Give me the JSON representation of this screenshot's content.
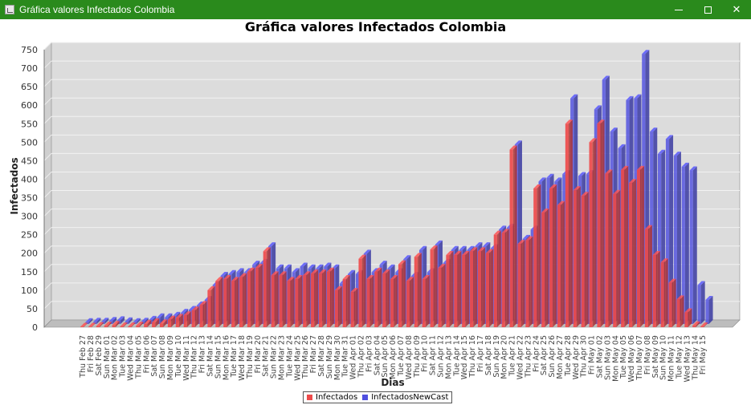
{
  "window": {
    "title": "Gráfica valores Infectados Colombia",
    "minimize_glyph": "—",
    "maximize_glyph": "☐",
    "close_glyph": "✕"
  },
  "colors": {
    "titlebar": "#2a8a1c",
    "plot_background": "#dcdcdc",
    "series_infectados": "#ee4b4b",
    "series_newcast": "#4f4fe0"
  },
  "chart_data": {
    "type": "bar",
    "title": "Gráfica valores Infectados Colombia",
    "xlabel": "Dias",
    "ylabel": "Infectados",
    "ylim": [
      0,
      750
    ],
    "yticks": [
      0,
      50,
      100,
      150,
      200,
      250,
      300,
      350,
      400,
      450,
      500,
      550,
      600,
      650,
      700,
      750
    ],
    "grid": true,
    "legend_position": "bottom-center",
    "categories": [
      "Thu Feb 27",
      "Fri Feb 28",
      "Sat Feb 29",
      "Sun Mar 01",
      "Mon Mar 02",
      "Tue Mar 03",
      "Wed Mar 04",
      "Thu Mar 05",
      "Fri Mar 06",
      "Sat Mar 07",
      "Sun Mar 08",
      "Mon Mar 09",
      "Tue Mar 10",
      "Wed Mar 11",
      "Thu Mar 12",
      "Fri Mar 13",
      "Sat Mar 14",
      "Sun Mar 15",
      "Mon Mar 16",
      "Tue Mar 17",
      "Wed Mar 18",
      "Thu Mar 19",
      "Fri Mar 20",
      "Sat Mar 21",
      "Sun Mar 22",
      "Mon Mar 23",
      "Tue Mar 24",
      "Wed Mar 25",
      "Thu Mar 26",
      "Fri Mar 27",
      "Sat Mar 28",
      "Sun Mar 29",
      "Mon Mar 30",
      "Tue Mar 31",
      "Wed Apr 01",
      "Thu Apr 02",
      "Fri Apr 03",
      "Sat Apr 04",
      "Sun Apr 05",
      "Mon Apr 06",
      "Tue Apr 07",
      "Wed Apr 08",
      "Thu Apr 09",
      "Fri Apr 10",
      "Sat Apr 11",
      "Sun Apr 12",
      "Mon Apr 13",
      "Tue Apr 14",
      "Wed Apr 15",
      "Thu Apr 16",
      "Fri Apr 17",
      "Sat Apr 18",
      "Sun Apr 19",
      "Mon Apr 20",
      "Tue Apr 21",
      "Wed Apr 22",
      "Thu Apr 23",
      "Fri Apr 24",
      "Sat Apr 25",
      "Sun Apr 26",
      "Mon Apr 27",
      "Tue Apr 28",
      "Wed Apr 29",
      "Thu Apr 30",
      "Fri May 01",
      "Sat May 02",
      "Sun May 03",
      "Mon May 04",
      "Tue May 05",
      "Wed May 06",
      "Thu May 07",
      "Fri May 08",
      "Sat May 09",
      "Sun May 10",
      "Mon May 11",
      "Tue May 12",
      "Wed May 13",
      "Thu May 14",
      "Fri May 15"
    ],
    "series": [
      {
        "name": "Infectados",
        "color": "#ee4b4b",
        "values": [
          1,
          1,
          3,
          4,
          6,
          2,
          2,
          4,
          9,
          13,
          10,
          20,
          25,
          32,
          45,
          60,
          100,
          125,
          130,
          125,
          135,
          150,
          160,
          205,
          140,
          140,
          125,
          130,
          140,
          145,
          145,
          150,
          100,
          130,
          95,
          185,
          130,
          150,
          145,
          130,
          170,
          125,
          190,
          130,
          210,
          160,
          195,
          195,
          195,
          205,
          205,
          200,
          250,
          255,
          480,
          225,
          235,
          375,
          310,
          375,
          330,
          550,
          370,
          355,
          500,
          550,
          415,
          360,
          425,
          390,
          425,
          265,
          195,
          175,
          120,
          75,
          40,
          5,
          2
        ]
      },
      {
        "name": "InfectadosNewCast",
        "color": "#4f4fe0",
        "values": [
          5,
          6,
          6,
          8,
          10,
          7,
          5,
          6,
          11,
          18,
          18,
          22,
          30,
          38,
          50,
          65,
          105,
          130,
          135,
          140,
          140,
          160,
          165,
          210,
          150,
          150,
          140,
          155,
          150,
          150,
          155,
          150,
          110,
          135,
          135,
          190,
          140,
          160,
          150,
          140,
          175,
          130,
          200,
          140,
          215,
          165,
          200,
          200,
          200,
          210,
          210,
          205,
          255,
          260,
          485,
          230,
          255,
          385,
          395,
          385,
          405,
          610,
          400,
          405,
          580,
          660,
          520,
          475,
          605,
          610,
          730,
          520,
          460,
          500,
          455,
          425,
          415,
          105,
          65
        ]
      }
    ]
  },
  "legend": {
    "items": [
      "Infectados",
      "InfectadosNewCast"
    ]
  }
}
